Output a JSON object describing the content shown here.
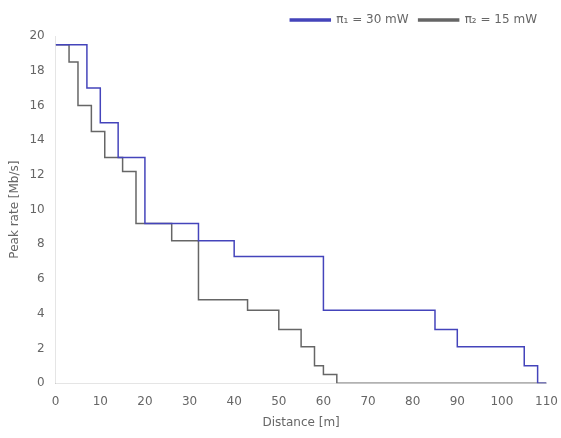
{
  "chart_data": {
    "type": "line",
    "xlabel": "Distance [m]",
    "ylabel": "Peak rate [Mb/s]",
    "xlim": [
      0,
      110
    ],
    "ylim": [
      0,
      20
    ],
    "xticks": [
      0,
      10,
      20,
      30,
      40,
      50,
      60,
      70,
      80,
      90,
      100,
      110
    ],
    "yticks": [
      0,
      2,
      4,
      6,
      8,
      10,
      12,
      14,
      16,
      18,
      20
    ],
    "grid": false,
    "legend": "upper right",
    "series": [
      {
        "name": "π₁ = 30 mW",
        "color": "#4444bb",
        "x": [
          0,
          7,
          7,
          10,
          10,
          14,
          14,
          20,
          20,
          32,
          32,
          40,
          40,
          40,
          60,
          60,
          85,
          85,
          90,
          90,
          105,
          105,
          108,
          108,
          110
        ],
        "values": [
          19.5,
          19.5,
          17.0,
          17.0,
          15.0,
          15.0,
          13.0,
          13.0,
          9.2,
          9.2,
          8.2,
          8.2,
          8.2,
          7.3,
          7.3,
          4.2,
          4.2,
          3.1,
          3.1,
          2.1,
          2.1,
          1.0,
          1.0,
          0.0,
          0.0
        ]
      },
      {
        "name": "π₂ = 15 mW",
        "color": "#666666",
        "x": [
          0,
          3,
          3,
          5,
          5,
          8,
          8,
          11,
          11,
          15,
          15,
          18,
          18,
          26,
          26,
          32,
          32,
          43,
          43,
          50,
          50,
          55,
          55,
          58,
          58,
          60,
          60,
          63,
          63,
          110
        ],
        "values": [
          19.5,
          19.5,
          18.5,
          18.5,
          16.0,
          16.0,
          14.5,
          14.5,
          13.0,
          13.0,
          12.2,
          12.2,
          9.2,
          9.2,
          8.2,
          8.2,
          4.8,
          4.8,
          4.2,
          4.2,
          3.1,
          3.1,
          2.1,
          2.1,
          1.0,
          1.0,
          0.5,
          0.5,
          0.0,
          0.0
        ]
      }
    ]
  }
}
